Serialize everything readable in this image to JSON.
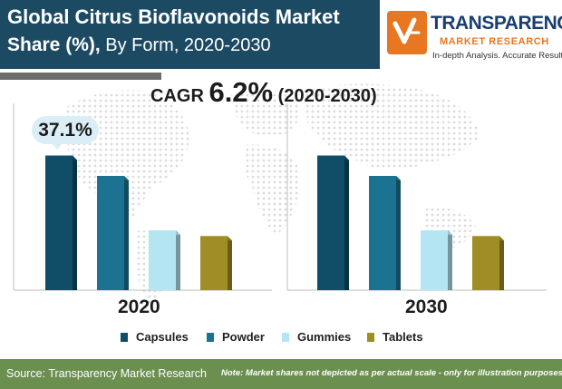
{
  "header": {
    "title_bold": "Global Citrus Bioflavonoids Market",
    "title_bold2": "Share (%),",
    "title_rest": " By Form, 2020-2030"
  },
  "logo": {
    "name": "TRANSPARENCY",
    "sub": "MARKET RESEARCH",
    "tagline": "In-depth Analysis. Accurate Results"
  },
  "cagr": {
    "label": "CAGR ",
    "value": "6.2%",
    "period": " (2020-2030)"
  },
  "chart_data": {
    "type": "bar",
    "categories": [
      "2020",
      "2030"
    ],
    "series": [
      {
        "name": "Capsules",
        "values": [
          37.1,
          37.1
        ]
      },
      {
        "name": "Powder",
        "values": [
          31.5,
          31.5
        ]
      },
      {
        "name": "Gummies",
        "values": [
          16.5,
          16.5
        ]
      },
      {
        "name": "Tablets",
        "values": [
          14.9,
          14.9
        ]
      }
    ],
    "data_labels": [
      {
        "category": "2020",
        "series": "Capsules",
        "text": "37.1%"
      }
    ],
    "ylim": [
      0,
      40
    ],
    "legend_placement": "bottom",
    "grid": false
  },
  "colors": {
    "Capsules": "#0f4e66",
    "Powder": "#1b7391",
    "Gummies": "#b3e6f2",
    "Tablets": "#a08d25",
    "title_bg": "#1c4a63",
    "footer_bg": "#6b8f4e"
  },
  "footer": {
    "source": "Source: Transparency Market Research",
    "note": "Note: Market shares not depicted as per actual scale - only for illustration purposes"
  }
}
